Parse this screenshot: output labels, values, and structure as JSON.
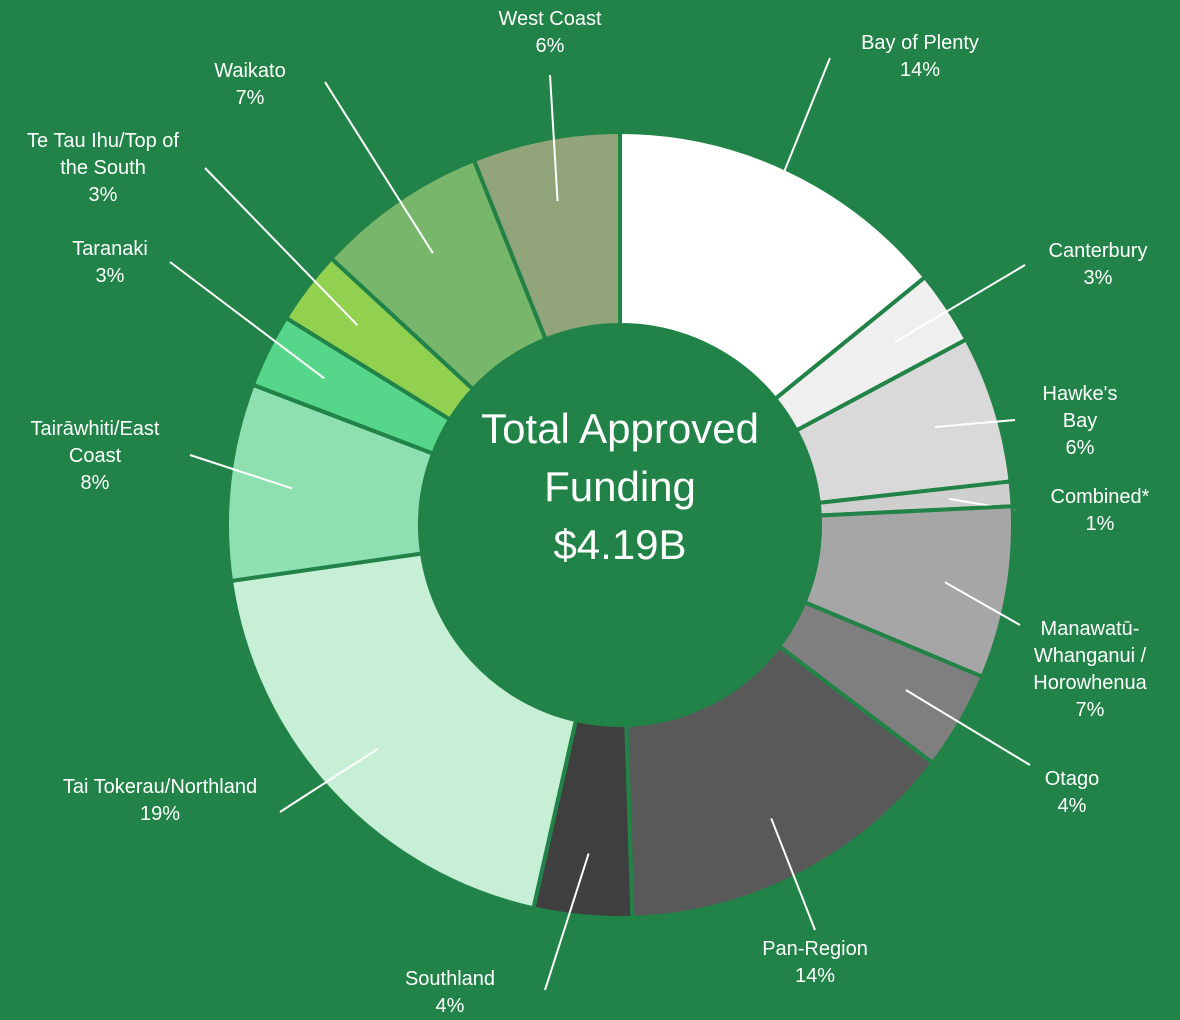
{
  "chart_data": {
    "type": "donut",
    "center_label": "Total Approved Funding",
    "center_value": "$4.19B",
    "categories": [
      "Bay of Plenty",
      "Canterbury",
      "Hawke's Bay",
      "Combined*",
      "Manawatū-Whanganui / Horowhenua",
      "Otago",
      "Pan-Region",
      "Southland",
      "Tai Tokerau/Northland",
      "Tairāwhiti/East Coast",
      "Taranaki",
      "Te Tau Ihu/Top of the South",
      "Waikato",
      "West Coast"
    ],
    "values": [
      14,
      3,
      6,
      1,
      7,
      4,
      14,
      4,
      19,
      8,
      3,
      3,
      7,
      6
    ],
    "value_labels": [
      "14%",
      "3%",
      "6%",
      "1%",
      "7%",
      "4%",
      "14%",
      "4%",
      "19%",
      "8%",
      "3%",
      "3%",
      "7%",
      "6%"
    ],
    "colors": [
      "#ffffff",
      "#efefef",
      "#d9d9d9",
      "#cfcfcf",
      "#a6a6a6",
      "#7f7f7f",
      "#595959",
      "#3f3f3f",
      "#c6efd6",
      "#8fe0b0",
      "#55d68a",
      "#92d050",
      "#77b66b",
      "#92a57a"
    ]
  }
}
